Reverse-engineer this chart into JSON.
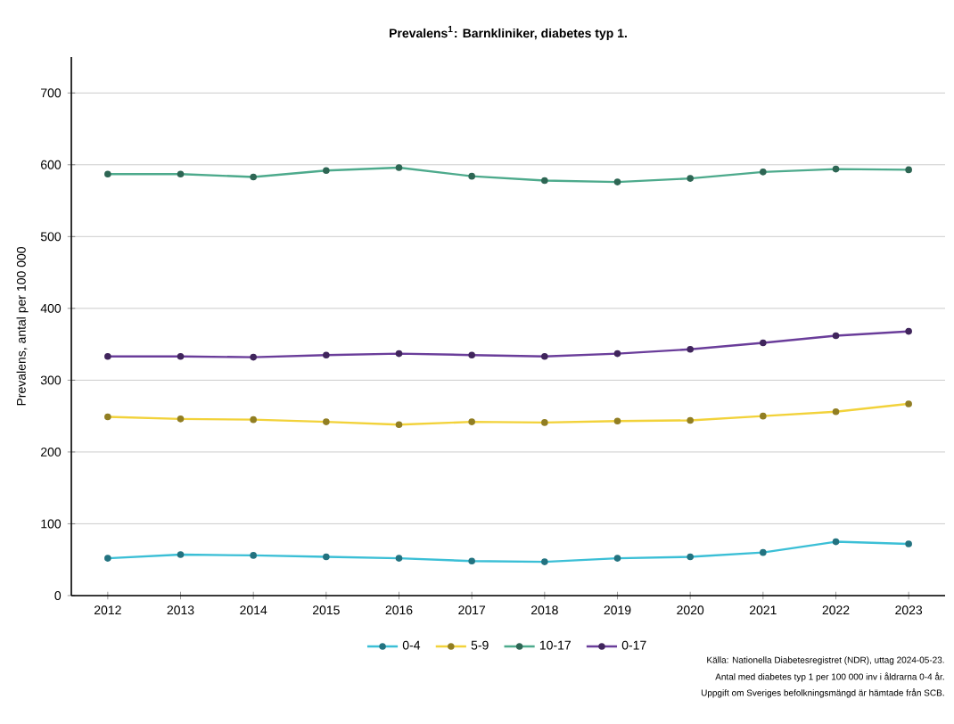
{
  "chart_data": {
    "type": "line",
    "title": "Prevalens$^{1}$: Barnkliniker, diabetes typ 1.",
    "ylabel": "Prevalens, antal per 100 000",
    "categories": [
      "2012",
      "2013",
      "2014",
      "2015",
      "2016",
      "2017",
      "2018",
      "2019",
      "2020",
      "2021",
      "2022",
      "2023"
    ],
    "series": [
      {
        "name": "0-4",
        "color": "#3bbfd6",
        "values": [
          52,
          57,
          56,
          54,
          52,
          48,
          47,
          52,
          54,
          60,
          75,
          72
        ]
      },
      {
        "name": "5-9",
        "color": "#f2d23a",
        "values": [
          249,
          246,
          245,
          242,
          238,
          242,
          241,
          243,
          244,
          250,
          256,
          267
        ]
      },
      {
        "name": "10-17",
        "color": "#4daa8c",
        "values": [
          587,
          587,
          583,
          592,
          596,
          584,
          578,
          576,
          581,
          590,
          594,
          593
        ]
      },
      {
        "name": "0-17",
        "color": "#6a3d9a",
        "values": [
          333,
          333,
          332,
          335,
          337,
          335,
          333,
          337,
          343,
          352,
          362,
          368
        ]
      }
    ],
    "ylim": [
      0,
      750
    ],
    "yticks": [
      0,
      100,
      200,
      300,
      400,
      500,
      600,
      700
    ],
    "grid": "y",
    "legend": "bottom",
    "marker": "circle",
    "line_style": "solid",
    "annotations": [
      "Källa: Nationella Diabetesregistret (NDR), uttag 2024-05-23.",
      "Antal med diabetes typ 1 per 100 000 inv i åldrarna 0-4 år.",
      "Uppgift om Sveriges befolkningsmängd är hämtade från SCB."
    ]
  }
}
